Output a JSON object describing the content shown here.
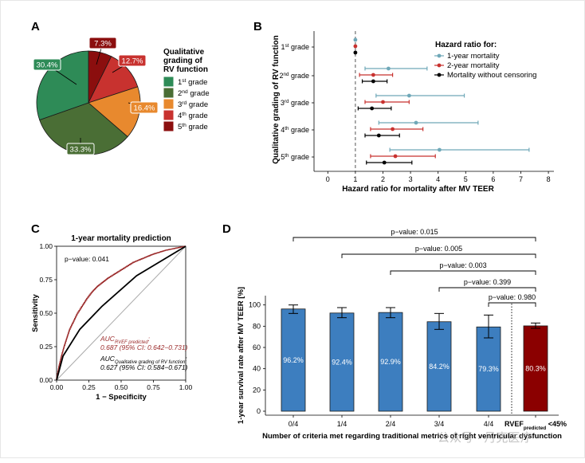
{
  "watermark": "公众号 · 丹克医疗",
  "chart_data": [
    {
      "panel": "A",
      "type": "pie",
      "title": "",
      "legend": {
        "title_lines": [
          "Qualitative",
          "grading of",
          "RV function"
        ],
        "items": [
          {
            "base": "1",
            "sup": "st",
            "suffix": " grade",
            "color": "#2e8b57"
          },
          {
            "base": "2",
            "sup": "nd",
            "suffix": " grade",
            "color": "#4a6e35"
          },
          {
            "base": "3",
            "sup": "rd",
            "suffix": " grade",
            "color": "#e8892e"
          },
          {
            "base": "4",
            "sup": "th",
            "suffix": " grade",
            "color": "#c8322f"
          },
          {
            "base": "5",
            "sup": "th",
            "suffix": " grade",
            "color": "#8b0e0e"
          }
        ]
      },
      "slices": [
        {
          "label": "30.4%",
          "value": 30.4,
          "color": "#2e8b57"
        },
        {
          "label": "33.3%",
          "value": 33.3,
          "color": "#4a6e35"
        },
        {
          "label": "16.4%",
          "value": 16.4,
          "color": "#e8892e"
        },
        {
          "label": "12.7%",
          "value": 12.7,
          "color": "#c8322f"
        },
        {
          "label": "7.3%",
          "value": 7.3,
          "color": "#8b0e0e"
        }
      ]
    },
    {
      "panel": "B",
      "type": "scatter",
      "subtype": "forest",
      "xlabel": "Hazard ratio for mortality after MV TEER",
      "ylabel": "Qualitative grading of RV function",
      "xlim": [
        -0.5,
        8.2
      ],
      "xticks": [
        "0",
        "1",
        "2",
        "3",
        "4",
        "5",
        "6",
        "7",
        "8"
      ],
      "reference_line": 1,
      "legend_title": "Hazard ratio for:",
      "series": [
        {
          "name": "1-year mortality",
          "color": "#6fa8b8"
        },
        {
          "name": "2-year mortality",
          "color": "#c8322f"
        },
        {
          "name": "Mortality without censoring",
          "color": "#000000"
        }
      ],
      "groups": [
        {
          "base": "1",
          "sup": "st",
          "suffix": " grade",
          "rows": [
            {
              "hr": 1.0,
              "lo": 1.0,
              "hi": 1.0
            },
            {
              "hr": 1.0,
              "lo": 1.0,
              "hi": 1.0
            },
            {
              "hr": 1.0,
              "lo": 1.0,
              "hi": 1.0
            }
          ]
        },
        {
          "base": "2",
          "sup": "nd",
          "suffix": " grade",
          "rows": [
            {
              "hr": 2.2,
              "lo": 1.35,
              "hi": 3.6
            },
            {
              "hr": 1.65,
              "lo": 1.15,
              "hi": 2.35
            },
            {
              "hr": 1.65,
              "lo": 1.25,
              "hi": 2.15
            }
          ]
        },
        {
          "base": "3",
          "sup": "rd",
          "suffix": " grade",
          "rows": [
            {
              "hr": 2.95,
              "lo": 1.75,
              "hi": 4.95
            },
            {
              "hr": 2.0,
              "lo": 1.35,
              "hi": 2.95
            },
            {
              "hr": 1.6,
              "lo": 1.1,
              "hi": 2.3
            }
          ]
        },
        {
          "base": "4",
          "sup": "th",
          "suffix": " grade",
          "rows": [
            {
              "hr": 3.2,
              "lo": 1.85,
              "hi": 5.45
            },
            {
              "hr": 2.35,
              "lo": 1.55,
              "hi": 3.45
            },
            {
              "hr": 1.85,
              "lo": 1.35,
              "hi": 2.6
            }
          ]
        },
        {
          "base": "5",
          "sup": "th",
          "suffix": " grade",
          "rows": [
            {
              "hr": 4.05,
              "lo": 2.25,
              "hi": 7.3
            },
            {
              "hr": 2.45,
              "lo": 1.55,
              "hi": 3.9
            },
            {
              "hr": 2.05,
              "lo": 1.4,
              "hi": 3.05
            }
          ]
        }
      ]
    },
    {
      "panel": "C",
      "type": "line",
      "title": "1-year mortality prediction",
      "xlabel": "1 − Specificity",
      "ylabel": "Sensitivity",
      "xlim": [
        0,
        1
      ],
      "ylim": [
        0,
        1
      ],
      "xticks": [
        "0.00",
        "0.25",
        "0.50",
        "0.75",
        "1.00"
      ],
      "yticks": [
        "0.00",
        "0.25",
        "0.50",
        "0.75",
        "1.00"
      ],
      "pvalue_text": "p−value: 0.041",
      "series": [
        {
          "name": "RVEF predicted",
          "color": "#9b2a2a",
          "auc_prefix": "AUC",
          "auc_sub": "RVEF predicted",
          "auc_suffix": ":",
          "auc_ci": "0.687 (95% CI: 0.642−0.731)",
          "x": [
            0,
            0.02,
            0.04,
            0.06,
            0.08,
            0.1,
            0.13,
            0.16,
            0.2,
            0.24,
            0.28,
            0.32,
            0.36,
            0.4,
            0.45,
            0.5,
            0.55,
            0.6,
            0.65,
            0.7,
            0.75,
            0.8,
            0.85,
            0.9,
            0.95,
            1.0
          ],
          "y": [
            0,
            0.1,
            0.18,
            0.25,
            0.31,
            0.37,
            0.43,
            0.49,
            0.55,
            0.61,
            0.66,
            0.7,
            0.73,
            0.76,
            0.79,
            0.82,
            0.85,
            0.88,
            0.9,
            0.92,
            0.94,
            0.955,
            0.97,
            0.98,
            0.99,
            1.0
          ]
        },
        {
          "name": "Qualitative grading of RV function",
          "color": "#000000",
          "auc_prefix": "AUC",
          "auc_sub": "Qualitative grading of RV function",
          "auc_suffix": ":",
          "auc_ci": "0.627 (95% CI: 0.584−0.671)",
          "x": [
            0,
            0.05,
            0.18,
            0.35,
            0.62,
            1.0
          ],
          "y": [
            0,
            0.18,
            0.38,
            0.55,
            0.78,
            1.0
          ]
        }
      ]
    },
    {
      "panel": "D",
      "type": "bar",
      "xlabel": "Number of criteria met regarding traditional metrics of right ventricular dysfunction",
      "ylabel": "1-year survival rate after MV TEER [%]",
      "ylim": [
        0,
        105
      ],
      "yticks": [
        "0",
        "20",
        "40",
        "60",
        "80",
        "100"
      ],
      "categories": [
        "0/4",
        "1/4",
        "2/4",
        "3/4",
        "4/4",
        "RVEF predicted <45%"
      ],
      "last_category": {
        "base": "RVEF",
        "sub": "predicted",
        "suffix": " <45%"
      },
      "values": [
        96.2,
        92.4,
        92.9,
        84.2,
        79.3,
        80.3
      ],
      "value_labels": [
        "96.2%",
        "92.4%",
        "92.9%",
        "84.2%",
        "79.3%",
        "80.3%"
      ],
      "err_lo": [
        92,
        88,
        88,
        77,
        69,
        78
      ],
      "err_hi": [
        100,
        97.5,
        97.5,
        92,
        90.5,
        83
      ],
      "colors": [
        "#3d7ebf",
        "#3d7ebf",
        "#3d7ebf",
        "#3d7ebf",
        "#3d7ebf",
        "#8b0000"
      ],
      "comparisons": [
        {
          "from": 0,
          "to": 5,
          "label": "p−value: 0.015"
        },
        {
          "from": 1,
          "to": 5,
          "label": "p−value: 0.005"
        },
        {
          "from": 2,
          "to": 5,
          "label": "p−value: 0.003"
        },
        {
          "from": 3,
          "to": 5,
          "label": "p−value: 0.399"
        },
        {
          "from": 4,
          "to": 5,
          "label": "p−value: 0.980"
        }
      ]
    }
  ],
  "panels": {
    "a": "A",
    "b": "B",
    "c": "C",
    "d": "D"
  }
}
